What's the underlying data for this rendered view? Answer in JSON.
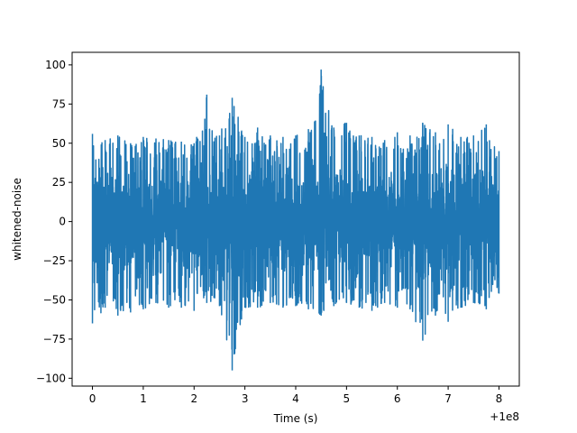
{
  "chart_data": {
    "type": "line",
    "title": "",
    "xlabel": "Time (s)",
    "ylabel": "whitened-noise",
    "x_offset_label": "+1e8",
    "xlim": [
      -0.4,
      8.4
    ],
    "ylim": [
      -105,
      108
    ],
    "x_ticks": [
      0,
      1,
      2,
      3,
      4,
      5,
      6,
      7,
      8
    ],
    "x_tick_labels": [
      "0",
      "1",
      "2",
      "3",
      "4",
      "5",
      "6",
      "7",
      "8"
    ],
    "y_ticks": [
      -100,
      -75,
      -50,
      -25,
      0,
      25,
      50,
      75,
      100
    ],
    "y_tick_labels": [
      "−100",
      "−75",
      "−50",
      "−25",
      "0",
      "25",
      "50",
      "75",
      "100"
    ],
    "grid": false,
    "line_color": "#1f77b4",
    "series": [
      {
        "x": [
          0,
          0.25,
          0.5,
          0.75,
          1,
          1.25,
          1.5,
          1.75,
          2,
          2.25,
          2.5,
          2.75,
          3,
          3.25,
          3.5,
          3.75,
          4,
          4.25,
          4.5,
          4.75,
          5,
          5.25,
          5.5,
          5.75,
          6,
          6.25,
          6.5,
          6.75,
          7,
          7.25,
          7.5,
          7.75,
          8
        ],
        "upper": [
          56,
          52,
          55,
          50,
          54,
          53,
          52,
          51,
          50,
          81,
          55,
          79,
          54,
          60,
          55,
          54,
          55,
          59,
          97,
          60,
          63,
          55,
          54,
          52,
          57,
          55,
          63,
          57,
          62,
          54,
          55,
          62,
          45
        ],
        "lower": [
          -65,
          -55,
          -60,
          -58,
          -56,
          -52,
          -55,
          -55,
          -57,
          -52,
          -54,
          -95,
          -55,
          -55,
          -52,
          -55,
          -54,
          -56,
          -60,
          -54,
          -52,
          -55,
          -57,
          -52,
          -55,
          -56,
          -76,
          -60,
          -64,
          -55,
          -52,
          -56,
          -46
        ]
      }
    ]
  }
}
